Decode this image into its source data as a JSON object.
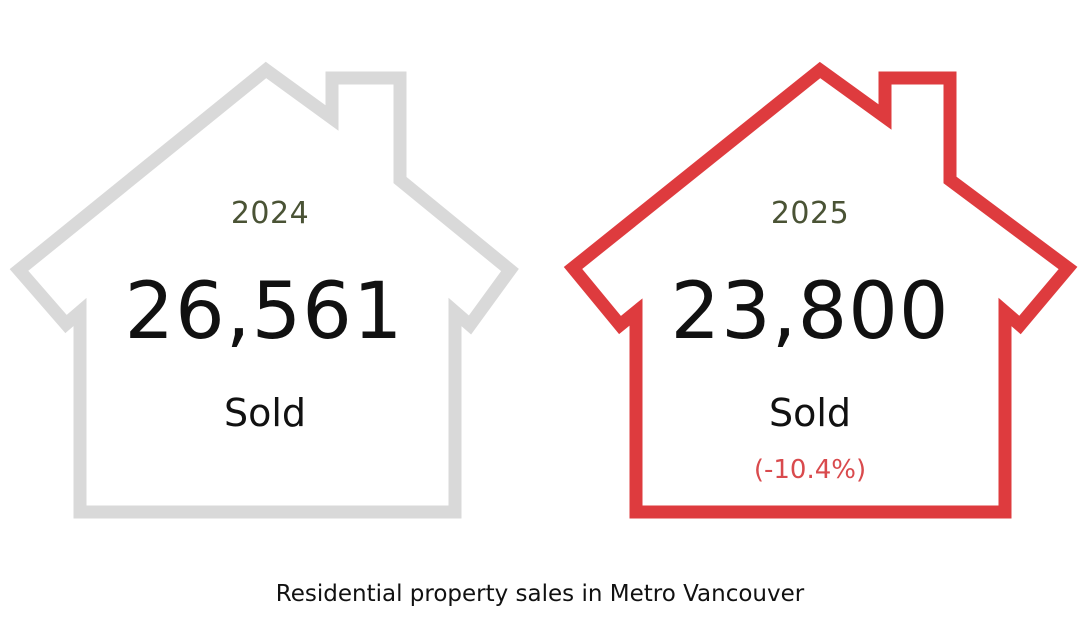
{
  "houses": [
    {
      "year": "2024",
      "count": "26,561",
      "label": "Sold",
      "change": "",
      "outline_color": "#d9d9d9"
    },
    {
      "year": "2025",
      "count": "23,800",
      "label": "Sold",
      "change": "(-10.4%)",
      "outline_color": "#de3b3e"
    }
  ],
  "caption": "Residential property sales in Metro Vancouver",
  "colors": {
    "year_text": "#4a5335",
    "change_text": "#d94a4d",
    "main_text": "#111111"
  }
}
